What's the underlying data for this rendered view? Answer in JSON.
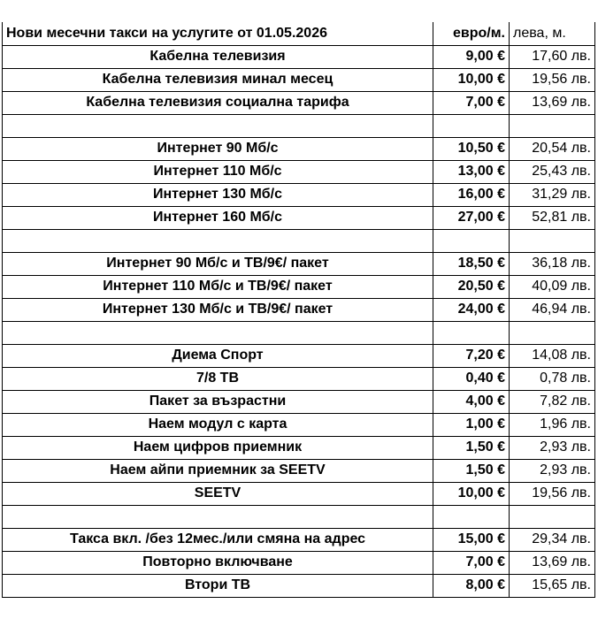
{
  "header": {
    "title": "Нови месечни такси на услугите от 01.05.2026",
    "eur": "евро/м.",
    "bgn": "лева, м."
  },
  "rows": [
    {
      "name": "Кабелна телевизия",
      "eur": "9,00 €",
      "bgn": "17,60 лв."
    },
    {
      "name": "Кабелна телевизия минал месец",
      "eur": "10,00 €",
      "bgn": "19,56 лв."
    },
    {
      "name": "Кабелна телевизия  социална тарифа",
      "eur": "7,00 €",
      "bgn": "13,69 лв."
    },
    {
      "name": "",
      "eur": "",
      "bgn": ""
    },
    {
      "name": "Интернет  90   Мб/с",
      "eur": "10,50 €",
      "bgn": "20,54 лв."
    },
    {
      "name": "Интернет  110   Мб/с",
      "eur": "13,00 €",
      "bgn": "25,43 лв."
    },
    {
      "name": "Интернет  130 Мб/с",
      "eur": "16,00 €",
      "bgn": "31,29 лв."
    },
    {
      "name": "Интернет 160  Мб/с",
      "eur": "27,00 €",
      "bgn": "52,81 лв."
    },
    {
      "name": "",
      "eur": "",
      "bgn": ""
    },
    {
      "name": "Интернет  90   Мб/с  и ТВ/9€/  пакет",
      "eur": "18,50 €",
      "bgn": "36,18 лв."
    },
    {
      "name": "Интернет  110   Мб/с  и ТВ/9€/  пакет",
      "eur": "20,50 €",
      "bgn": "40,09 лв."
    },
    {
      "name": "Интернет  130 Мб/с  и ТВ/9€/  пакет",
      "eur": "24,00 €",
      "bgn": "46,94 лв."
    },
    {
      "name": "",
      "eur": "",
      "bgn": ""
    },
    {
      "name": "Диема Спорт",
      "eur": "7,20 €",
      "bgn": "14,08 лв."
    },
    {
      "name": "7/8 ТВ",
      "eur": "0,40 €",
      "bgn": "0,78 лв."
    },
    {
      "name": "Пакет за възрастни",
      "eur": "4,00 €",
      "bgn": "7,82 лв."
    },
    {
      "name": "Наем модул с карта",
      "eur": "1,00 €",
      "bgn": "1,96 лв."
    },
    {
      "name": "Наем цифров приемник",
      "eur": "1,50 €",
      "bgn": "2,93 лв."
    },
    {
      "name": "Наем айпи приемник за SEETV",
      "eur": "1,50 €",
      "bgn": "2,93 лв."
    },
    {
      "name": "SEETV",
      "eur": "10,00 €",
      "bgn": "19,56 лв."
    },
    {
      "name": "",
      "eur": "",
      "bgn": ""
    },
    {
      "name": "Такса вкл. /без 12мес./или смяна на адрес",
      "eur": "15,00 €",
      "bgn": "29,34 лв."
    },
    {
      "name": "Повторно включване",
      "eur": "7,00 €",
      "bgn": "13,69 лв."
    },
    {
      "name": "Втори ТВ",
      "eur": "8,00 €",
      "bgn": "15,65 лв."
    }
  ]
}
